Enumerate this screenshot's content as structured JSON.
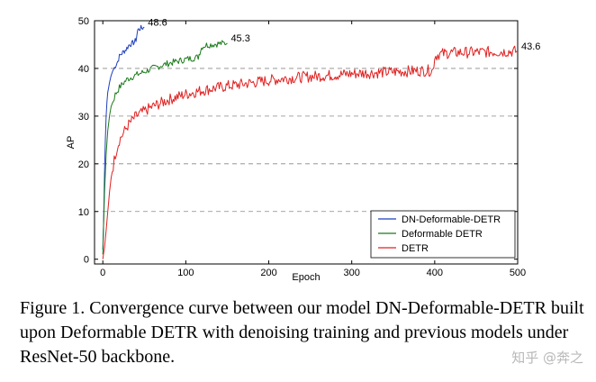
{
  "chart_data": {
    "type": "line",
    "xlabel": "Epoch",
    "ylabel": "AP",
    "xlim": [
      -10,
      500
    ],
    "ylim": [
      -1,
      50
    ],
    "xticks": [
      0,
      100,
      200,
      300,
      400,
      500
    ],
    "yticks": [
      0,
      10,
      20,
      30,
      40,
      50
    ],
    "grid": "horizontal dashed at y = 10, 20, 30, 40",
    "legend_position": "lower-right",
    "series": [
      {
        "name": "DN-Deformable-DETR",
        "color": "#1f3fbf",
        "x": [
          0,
          1,
          2,
          3,
          4,
          5,
          6,
          8,
          10,
          12,
          15,
          18,
          20,
          22,
          25,
          28,
          30,
          32,
          35,
          38,
          40,
          42,
          45,
          48,
          50
        ],
        "y": [
          2,
          8,
          18,
          25,
          30,
          33,
          35,
          37,
          38.5,
          39.5,
          40.5,
          41.5,
          42.5,
          43,
          43.5,
          44,
          44.5,
          45,
          45.2,
          45.5,
          46,
          48,
          48.4,
          48.5,
          48.6
        ],
        "end_label": "48.6"
      },
      {
        "name": "Deformable DETR",
        "color": "#1a7a1a",
        "x": [
          0,
          2,
          4,
          6,
          8,
          10,
          15,
          20,
          25,
          30,
          40,
          50,
          60,
          70,
          80,
          90,
          100,
          110,
          115,
          118,
          120,
          125,
          130,
          140,
          150
        ],
        "y": [
          1,
          14,
          22,
          27,
          30,
          32,
          34.5,
          36,
          37,
          37.8,
          38.6,
          39.3,
          40,
          40.6,
          41.1,
          41.5,
          41.9,
          42.2,
          42.4,
          44,
          44.6,
          44.9,
          45,
          45.2,
          45.3
        ],
        "end_label": "45.3"
      },
      {
        "name": "DETR",
        "color": "#e02020",
        "x": [
          0,
          2,
          4,
          6,
          8,
          10,
          15,
          20,
          30,
          40,
          50,
          60,
          80,
          100,
          120,
          150,
          180,
          200,
          220,
          250,
          280,
          300,
          330,
          350,
          380,
          398,
          400,
          405,
          420,
          450,
          480,
          500
        ],
        "y": [
          0,
          2.5,
          6,
          10,
          14,
          17,
          22,
          25,
          28,
          30,
          31,
          32,
          33.5,
          34.6,
          35.4,
          36.3,
          37,
          37.5,
          37.9,
          38.3,
          38.6,
          38.9,
          39.1,
          39.3,
          39.5,
          39.6,
          42.5,
          43,
          43.3,
          43.4,
          43.5,
          43.6
        ],
        "end_label": "43.6"
      }
    ]
  },
  "caption": "Figure 1. Convergence curve between our model DN-Deformable-DETR built upon Deformable DETR with denoising training and previous models under ResNet-50 backbone.",
  "watermark": "知乎 @奔之"
}
